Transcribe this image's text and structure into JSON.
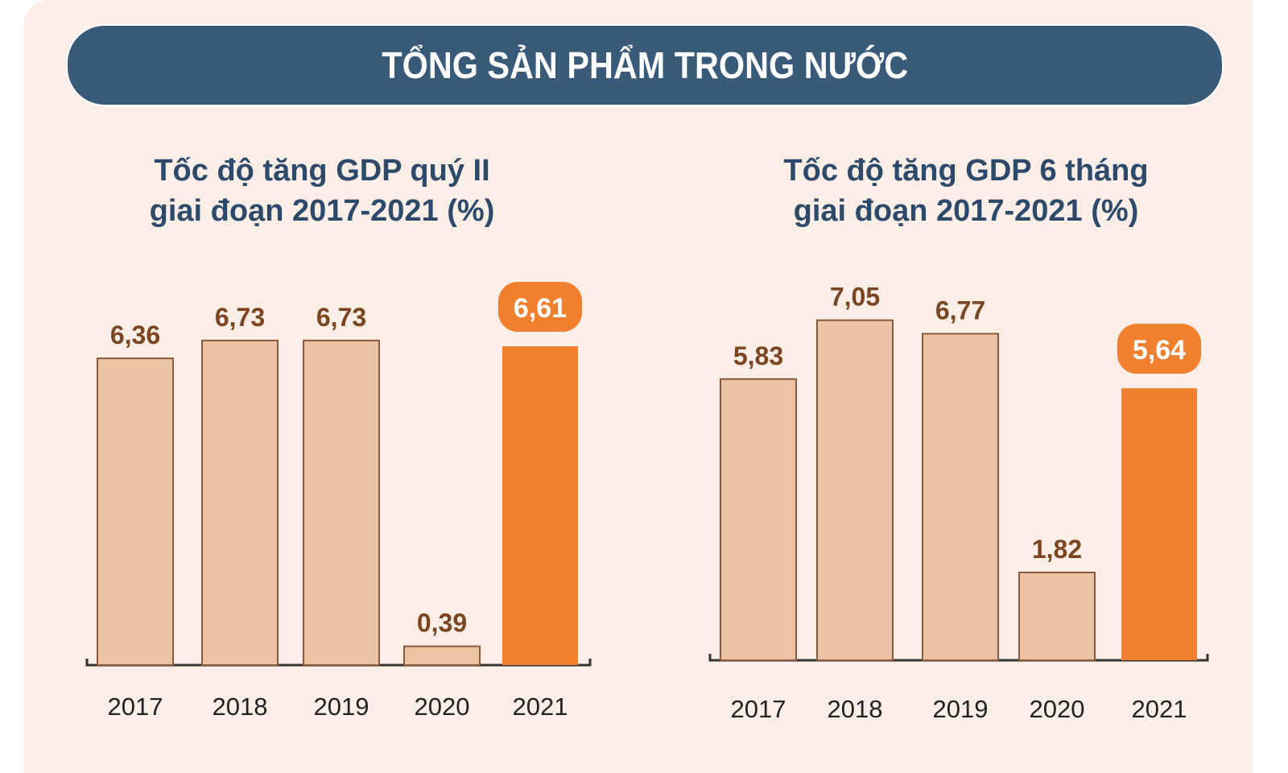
{
  "header": {
    "title": "TỔNG SẢN PHẨM TRONG NƯỚC"
  },
  "colors": {
    "banner": "#3a5a7a",
    "bar": "#e9c3a4",
    "highlight": "#f07f2e",
    "label": "#7a4520",
    "title": "#2d4a6b"
  },
  "chart_data": [
    {
      "type": "bar",
      "title": [
        "Tốc độ tăng GDP quý II",
        "giai đoạn 2017-2021 (%)"
      ],
      "categories": [
        "2017",
        "2018",
        "2019",
        "2020",
        "2021"
      ],
      "values": [
        6.36,
        6.73,
        6.73,
        0.39,
        6.61
      ],
      "labels": [
        "6,36",
        "6,73",
        "6,73",
        "0,39",
        "6,61"
      ],
      "highlight_index": 4,
      "ylim": [
        0,
        7.5
      ]
    },
    {
      "type": "bar",
      "title": [
        "Tốc độ tăng GDP 6 tháng",
        "giai đoạn 2017-2021 (%)"
      ],
      "categories": [
        "2017",
        "2018",
        "2019",
        "2020",
        "2021"
      ],
      "values": [
        5.83,
        7.05,
        6.77,
        1.82,
        5.64
      ],
      "labels": [
        "5,83",
        "7,05",
        "6,77",
        "1,82",
        "5,64"
      ],
      "highlight_index": 4,
      "ylim": [
        0,
        7.5
      ]
    }
  ]
}
